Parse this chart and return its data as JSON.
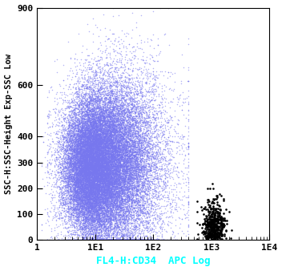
{
  "title": "",
  "xlabel": "FL4-H:CD34  APC Log",
  "ylabel": "SSC-H:SSC-Height Exp-SSC Low",
  "xlabel_color": "#00ffff",
  "ylabel_color": "#000000",
  "background_color": "#ffffff",
  "plot_bg_color": "#ffffff",
  "xscale": "log",
  "xlim": [
    1,
    10000
  ],
  "ylim": [
    0,
    900
  ],
  "yticks": [
    0,
    100,
    200,
    300,
    400,
    600,
    900
  ],
  "blue_n": 35000,
  "blue_color": "#7777ee",
  "blue_alpha": 0.55,
  "blue_marker_size": 1.2,
  "black_n": 500,
  "black_color": "#000000",
  "black_alpha": 1.0,
  "black_marker_size": 3.5,
  "tick_fontsize": 8,
  "label_fontsize": 9,
  "ylabel_fontsize": 7.5,
  "figsize": [
    3.52,
    3.38
  ],
  "dpi": 100
}
